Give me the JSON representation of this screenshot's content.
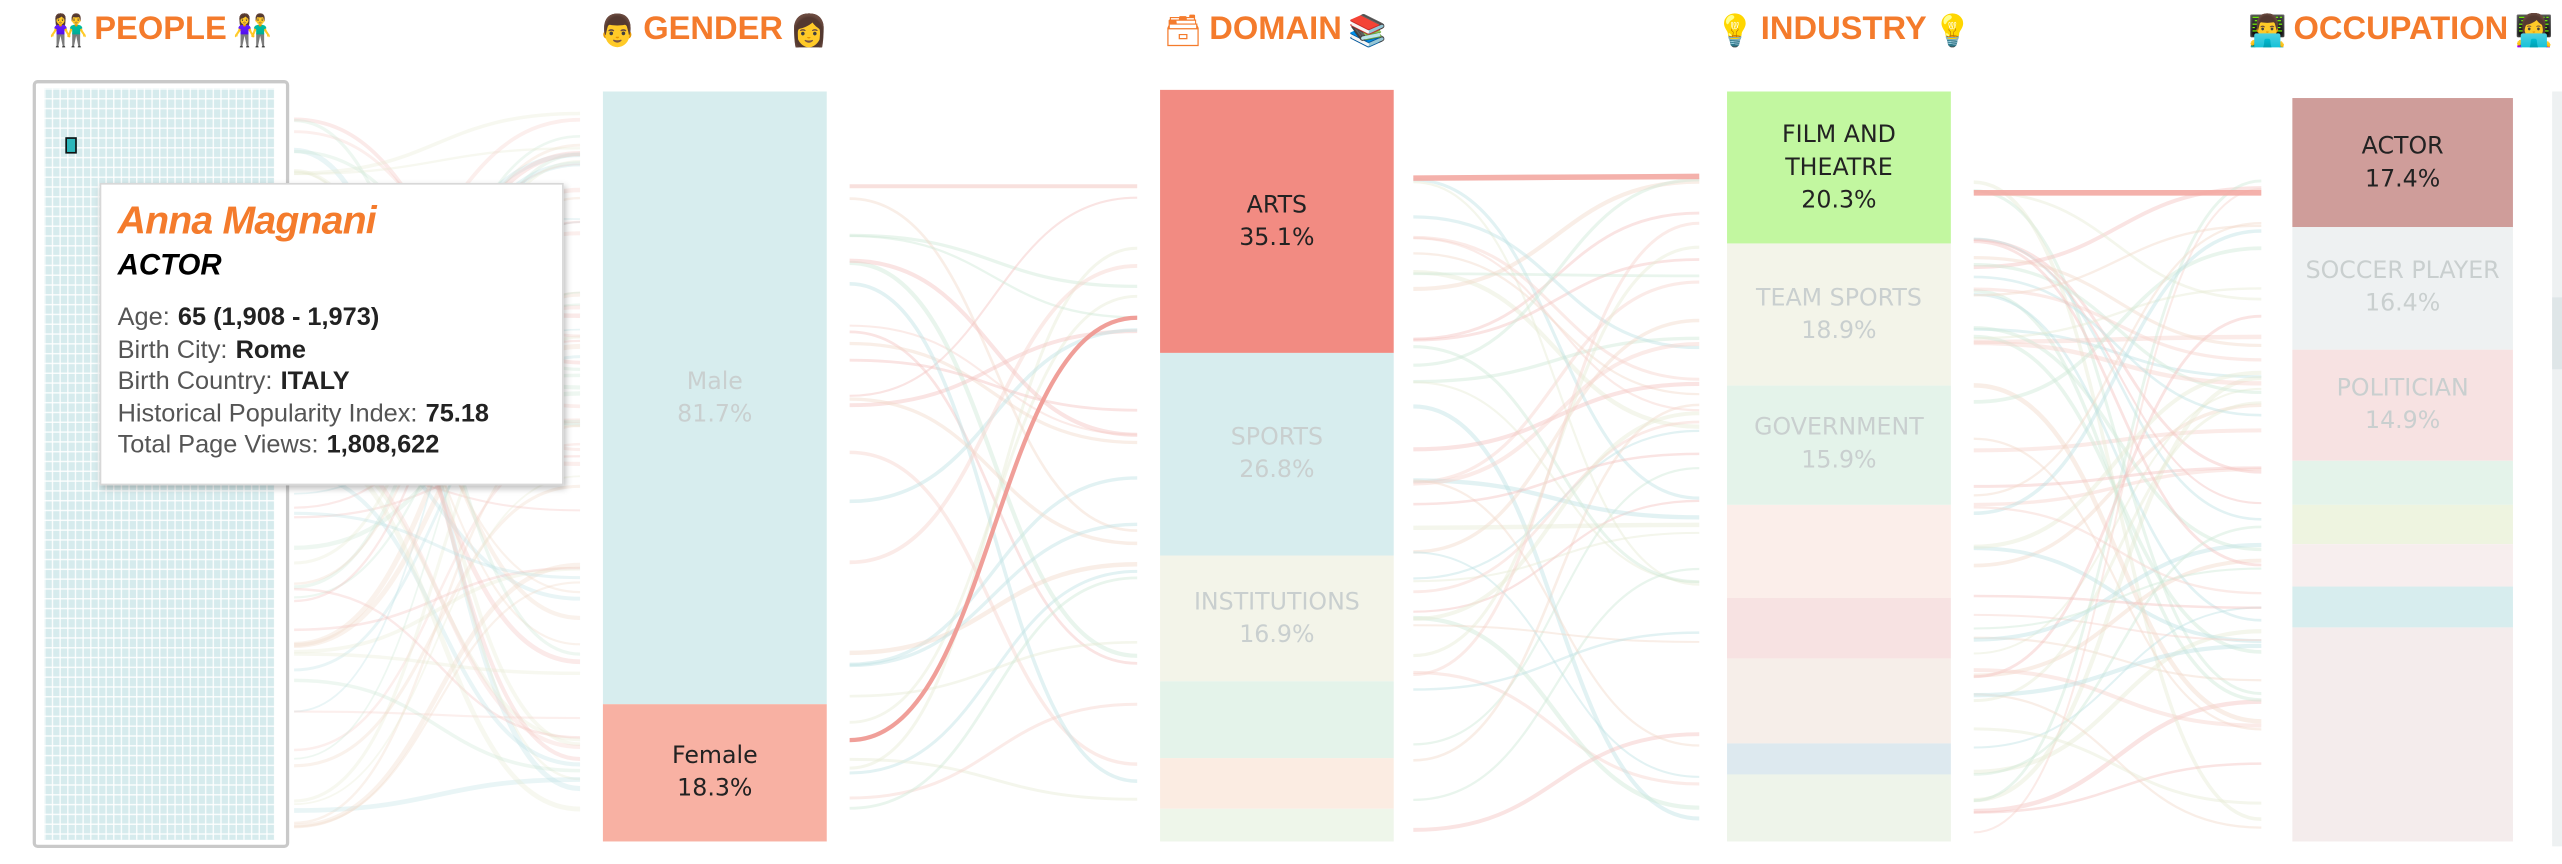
{
  "headers": {
    "people": {
      "label": "PEOPLE",
      "icon_left": "people-holding-hands-icon",
      "icon_right": "people-holding-hands-icon"
    },
    "gender": {
      "label": "GENDER",
      "icon_left": "man-face-icon",
      "icon_right": "woman-face-icon"
    },
    "domain": {
      "label": "DOMAIN",
      "icon_left": "card-file-box-icon",
      "icon_right": "books-icon"
    },
    "industry": {
      "label": "INDUSTRY",
      "icon_left": "light-bulb-icon",
      "icon_right": "light-bulb-icon"
    },
    "occupation": {
      "label": "OCCUPATION",
      "icon_left": "technologist-icon",
      "icon_right": "technologist-icon"
    }
  },
  "tooltip": {
    "name": "Anna Magnani",
    "occupation": "ACTOR",
    "rows": [
      {
        "label": "Age:",
        "value": "65 (1,908 - 1,973)"
      },
      {
        "label": "Birth City:",
        "value": "Rome"
      },
      {
        "label": "Birth Country:",
        "value": "ITALY"
      },
      {
        "label": "Historical Popularity Index:",
        "value": "75.18"
      },
      {
        "label": "Total Page Views:",
        "value": "1,808,622"
      }
    ]
  },
  "colors": {
    "accent": "#f47b2c",
    "arts": "#f28b82",
    "female": "#f8b1a3",
    "film": "#c2f7a0",
    "actor": "#cf9d9a",
    "muted_teal": "#d7edee",
    "muted_cream": "#f3f4e9",
    "muted_pink": "#f7e2e2",
    "muted_mint": "#e4f3ea"
  },
  "chart_data": {
    "type": "sankey",
    "highlight": "Anna Magnani",
    "stages": [
      {
        "name": "GENDER",
        "segments": [
          {
            "label": "Male",
            "value": 81.7,
            "unit": "%",
            "highlighted": false,
            "color": "#d7edee",
            "show_label": true
          },
          {
            "label": "Female",
            "value": 18.3,
            "unit": "%",
            "highlighted": true,
            "color": "#f8b1a3",
            "show_label": true
          }
        ]
      },
      {
        "name": "DOMAIN",
        "segments": [
          {
            "label": "ARTS",
            "value": 35.1,
            "highlighted": true,
            "color": "#f28b82",
            "show_label": true
          },
          {
            "label": "SPORTS",
            "value": 26.8,
            "highlighted": false,
            "color": "#d7edee",
            "show_label": true
          },
          {
            "label": "INSTITUTIONS",
            "value": 16.9,
            "highlighted": false,
            "color": "#f3f4e9",
            "show_label": true
          },
          {
            "label": "",
            "value": 10.2,
            "highlighted": false,
            "color": "#e4f3ea",
            "show_label": false
          },
          {
            "label": "",
            "value": 6.6,
            "highlighted": false,
            "color": "#fbece2",
            "show_label": false
          },
          {
            "label": "",
            "value": 4.4,
            "highlighted": false,
            "color": "#eef6ea",
            "show_label": false
          }
        ]
      },
      {
        "name": "INDUSTRY",
        "segments": [
          {
            "label": "FILM AND THEATRE",
            "value": 20.3,
            "highlighted": true,
            "color": "#c2f7a0",
            "show_label": true
          },
          {
            "label": "TEAM SPORTS",
            "value": 18.9,
            "highlighted": false,
            "color": "#f3f4e9",
            "show_label": true
          },
          {
            "label": "GOVERNMENT",
            "value": 15.9,
            "highlighted": false,
            "color": "#e4f3ea",
            "show_label": true
          },
          {
            "label": "",
            "value": 12.4,
            "highlighted": false,
            "color": "#fbeeea",
            "show_label": false
          },
          {
            "label": "",
            "value": 8.0,
            "highlighted": false,
            "color": "#f7e2e2",
            "show_label": false
          },
          {
            "label": "",
            "value": 11.4,
            "highlighted": false,
            "color": "#f6eee9",
            "show_label": false
          },
          {
            "label": "",
            "value": 4.1,
            "highlighted": false,
            "color": "#dde9ef",
            "show_label": false
          },
          {
            "label": "",
            "value": 9.0,
            "highlighted": false,
            "color": "#eef4ea",
            "show_label": false
          }
        ]
      },
      {
        "name": "OCCUPATION",
        "segments": [
          {
            "label": "ACTOR",
            "value": 17.4,
            "highlighted": true,
            "color": "#cf9d9a",
            "show_label": true
          },
          {
            "label": "SOCCER PLAYER",
            "value": 16.4,
            "highlighted": false,
            "color": "#eef1f2",
            "show_label": true
          },
          {
            "label": "POLITICIAN",
            "value": 14.9,
            "highlighted": false,
            "color": "#f7e2e2",
            "show_label": true
          },
          {
            "label": "",
            "value": 6.0,
            "highlighted": false,
            "color": "#e4f3ea",
            "show_label": false
          },
          {
            "label": "",
            "value": 5.4,
            "highlighted": false,
            "color": "#eef4e0",
            "show_label": false
          },
          {
            "label": "",
            "value": 5.6,
            "highlighted": false,
            "color": "#f7eeee",
            "show_label": false
          },
          {
            "label": "",
            "value": 5.5,
            "highlighted": false,
            "color": "#d7edee",
            "show_label": false
          },
          {
            "label": "",
            "value": 28.8,
            "highlighted": false,
            "color": "#f4ecec",
            "show_label": false
          }
        ]
      }
    ]
  }
}
